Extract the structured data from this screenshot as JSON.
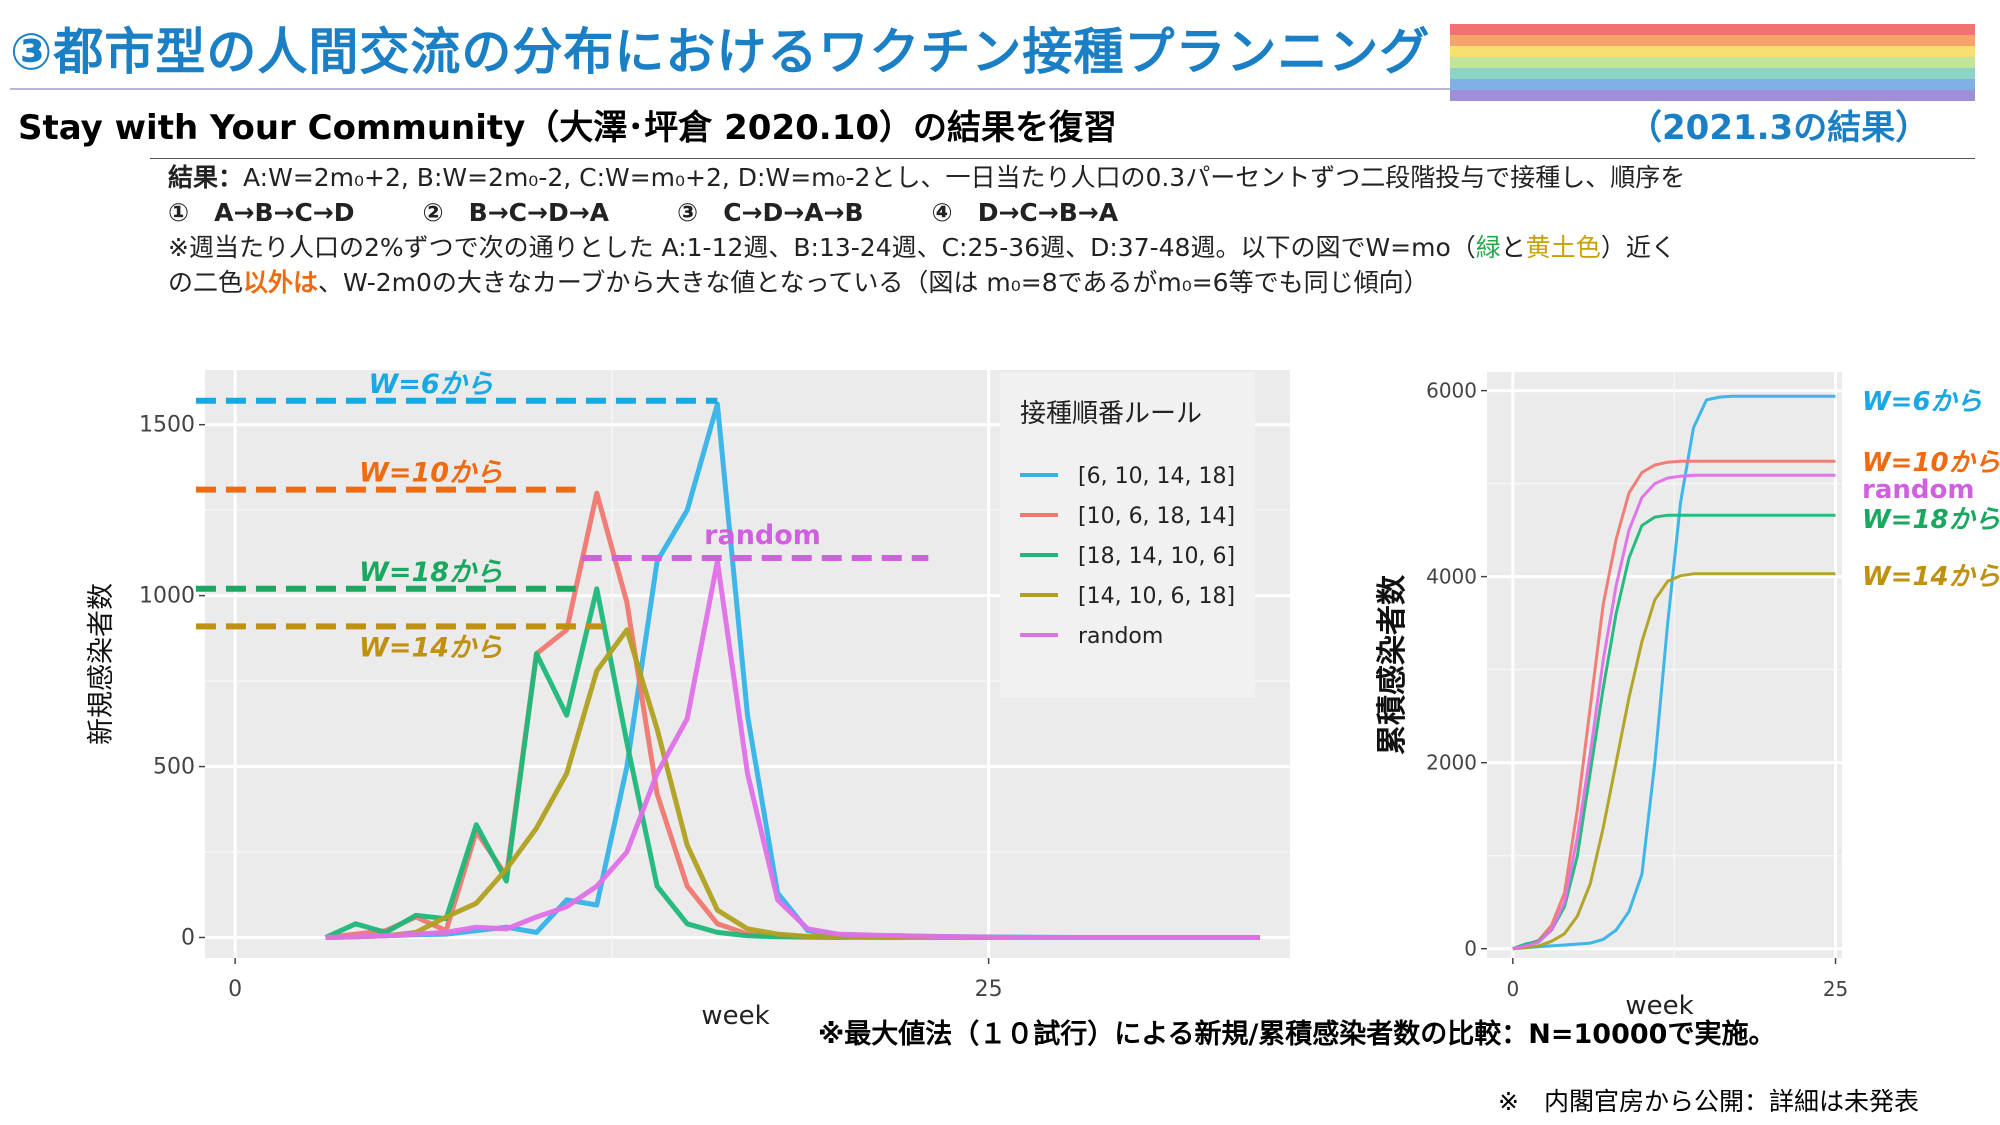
{
  "header": {
    "title": "③都市型の人間交流の分布におけるワクチン接種プランニング",
    "subtitle": "Stay with Your Community（大澤･坪倉 2020.10）の結果を復習",
    "date_label": "（2021.3の結果）",
    "rainbow_colors": [
      "#f07272",
      "#f6a46c",
      "#f8e070",
      "#c4e49a",
      "#8ed4c4",
      "#7fb1e6",
      "#a08ed6"
    ]
  },
  "body": {
    "result_label": "結果：",
    "line1": "A:W=2m₀+2, B:W=2m₀-2, C:W=m₀+2, D:W=m₀-2とし、一日当たり人口の0.3パーセントずつ二段階投与で接種し、順序を",
    "orders": [
      "①　A→B→C→D",
      "②　B→C→D→A",
      "③　C→D→A→B",
      "④　D→C→B→A"
    ],
    "line3": "※週当たり人口の2%ずつで次の通りとした A:1-12週、B:13-24週、C:25-36週、D:37-48週。以下の図でW=mo（",
    "line3_green": "緑",
    "line3_and": "と",
    "line3_ochre": "黄土色",
    "line3_end": "）近く",
    "line4_start": "の二色",
    "line4_emph": "以外は",
    "line4_end": "、W-2m0の大きなカーブから大きな値となっている（図は m₀=8であるがm₀=6等でも同じ傾向）"
  },
  "footer": {
    "comparison_note": "※最大値法（１０試行）による新規/累積感染者数の比較：N=10000で実施。",
    "source_note": "※　内閣官房から公開：詳細は未発表"
  },
  "chart_data": [
    {
      "type": "line",
      "ylabel": "新規感染者数",
      "xlabel": "week",
      "xlim": [
        -1,
        35
      ],
      "ylim": [
        -60,
        1660
      ],
      "x_ticks": [
        0,
        25
      ],
      "y_ticks": [
        0,
        500,
        1000,
        1500
      ],
      "grid": true,
      "legend": {
        "title": "接種順番ルール",
        "position": "right-inside"
      },
      "series": [
        {
          "name": "[6, 10, 14, 18]",
          "color": "#35b3e8",
          "x": [
            3,
            4,
            5,
            6,
            7,
            8,
            9,
            10,
            11,
            12,
            13,
            14,
            15,
            16,
            17,
            18,
            19,
            20,
            22,
            24,
            26,
            28,
            30,
            34
          ],
          "y": [
            0,
            2,
            5,
            8,
            10,
            20,
            30,
            15,
            110,
            95,
            500,
            1100,
            1250,
            1560,
            650,
            130,
            20,
            5,
            2,
            2,
            1,
            0,
            0,
            0
          ]
        },
        {
          "name": "[10, 6, 18, 14]",
          "color": "#f07870",
          "x": [
            3,
            4,
            5,
            6,
            7,
            8,
            9,
            10,
            11,
            12,
            13,
            14,
            15,
            16,
            17,
            18,
            19,
            20,
            22,
            24,
            26,
            28,
            30,
            34
          ],
          "y": [
            0,
            10,
            20,
            60,
            20,
            310,
            180,
            830,
            900,
            1300,
            980,
            420,
            150,
            40,
            10,
            5,
            2,
            1,
            0,
            0,
            0,
            0,
            0,
            0
          ]
        },
        {
          "name": "[18, 14, 10, 6]",
          "color": "#1db87a",
          "x": [
            3,
            4,
            5,
            6,
            7,
            8,
            9,
            10,
            11,
            12,
            13,
            14,
            15,
            16,
            17,
            18,
            19,
            20,
            22,
            24,
            26,
            28,
            30,
            34
          ],
          "y": [
            0,
            40,
            15,
            65,
            55,
            330,
            165,
            830,
            650,
            1020,
            570,
            150,
            40,
            15,
            5,
            2,
            1,
            0,
            5,
            0,
            0,
            0,
            0,
            0
          ]
        },
        {
          "name": "[14, 10, 6, 18]",
          "color": "#b0a020",
          "x": [
            3,
            4,
            5,
            6,
            7,
            8,
            9,
            10,
            11,
            12,
            13,
            14,
            15,
            16,
            17,
            18,
            19,
            20,
            22,
            24,
            26,
            28,
            30,
            34
          ],
          "y": [
            0,
            2,
            5,
            15,
            60,
            100,
            200,
            320,
            480,
            780,
            900,
            610,
            270,
            80,
            25,
            10,
            3,
            1,
            0,
            0,
            0,
            0,
            0,
            0
          ]
        },
        {
          "name": "random",
          "color": "#e070e8",
          "x": [
            3,
            4,
            5,
            6,
            7,
            8,
            9,
            10,
            11,
            12,
            13,
            14,
            15,
            16,
            17,
            18,
            19,
            20,
            22,
            24,
            26,
            28,
            30,
            34
          ],
          "y": [
            0,
            2,
            5,
            10,
            15,
            30,
            25,
            60,
            90,
            150,
            250,
            480,
            640,
            1100,
            480,
            110,
            25,
            10,
            5,
            2,
            0,
            0,
            0,
            0
          ]
        }
      ],
      "reference_lines": [
        {
          "label": "W=6から",
          "y": 1570,
          "x_from": -1.3,
          "x_to": 16,
          "color": "#1aa8e4"
        },
        {
          "label": "W=10から",
          "y": 1310,
          "x_from": -1.3,
          "x_to": 11.3,
          "color": "#f06a10"
        },
        {
          "label": "W=18から",
          "y": 1020,
          "x_from": -1.3,
          "x_to": 11.3,
          "color": "#1aa860"
        },
        {
          "label": "W=14から",
          "y": 910,
          "x_from": -1.3,
          "x_to": 12.2,
          "color": "#c09010"
        },
        {
          "label": "random",
          "y": 1110,
          "x_from": 11.5,
          "x_to": 23,
          "color": "#d060e0"
        }
      ]
    },
    {
      "type": "line",
      "ylabel": "累積感染者数",
      "xlabel": "week",
      "xlim": [
        -2,
        25.5
      ],
      "ylim": [
        -100,
        6200
      ],
      "x_ticks": [
        0,
        25
      ],
      "y_ticks": [
        0,
        2000,
        4000,
        6000
      ],
      "grid": true,
      "series": [
        {
          "name": "[6, 10, 14, 18]",
          "color": "#35b3e8",
          "x": [
            0,
            2,
            4,
            6,
            7,
            8,
            9,
            10,
            11,
            12,
            13,
            14,
            15,
            16,
            17,
            18,
            20,
            25
          ],
          "y": [
            0,
            20,
            40,
            60,
            100,
            200,
            400,
            800,
            2000,
            3500,
            4800,
            5600,
            5900,
            5930,
            5940,
            5940,
            5940,
            5940
          ]
        },
        {
          "name": "[10, 6, 18, 14]",
          "color": "#f07870",
          "x": [
            0,
            1,
            2,
            3,
            4,
            5,
            6,
            7,
            8,
            9,
            10,
            11,
            12,
            13,
            14,
            16,
            20,
            25
          ],
          "y": [
            0,
            40,
            90,
            250,
            600,
            1500,
            2600,
            3700,
            4400,
            4900,
            5120,
            5200,
            5230,
            5240,
            5240,
            5240,
            5240,
            5240
          ]
        },
        {
          "name": "[18, 14, 10, 6]",
          "color": "#1db87a",
          "x": [
            0,
            1,
            2,
            3,
            4,
            5,
            6,
            7,
            8,
            9,
            10,
            11,
            12,
            13,
            16,
            20,
            25
          ],
          "y": [
            0,
            50,
            80,
            200,
            450,
            1000,
            1900,
            2800,
            3600,
            4200,
            4550,
            4640,
            4660,
            4660,
            4660,
            4660,
            4660
          ]
        },
        {
          "name": "[14, 10, 6, 18]",
          "color": "#b0a020",
          "x": [
            0,
            1,
            2,
            3,
            4,
            5,
            6,
            7,
            8,
            9,
            10,
            11,
            12,
            13,
            14,
            16,
            20,
            25
          ],
          "y": [
            0,
            10,
            30,
            80,
            160,
            350,
            700,
            1300,
            2000,
            2700,
            3300,
            3750,
            3950,
            4010,
            4030,
            4030,
            4030,
            4030
          ]
        },
        {
          "name": "random",
          "color": "#e070e8",
          "x": [
            0,
            1,
            2,
            3,
            4,
            5,
            6,
            7,
            8,
            9,
            10,
            11,
            12,
            13,
            14,
            16,
            20,
            25
          ],
          "y": [
            0,
            30,
            70,
            200,
            500,
            1200,
            2100,
            3100,
            3900,
            4500,
            4850,
            5000,
            5060,
            5080,
            5090,
            5090,
            5090,
            5090
          ]
        }
      ],
      "end_labels": [
        {
          "label": "W=6から",
          "color": "#1aa8e4"
        },
        {
          "label": "W=10から",
          "color": "#f06a10"
        },
        {
          "label": "random",
          "color": "#d060e0"
        },
        {
          "label": "W=18から",
          "color": "#1aa860"
        },
        {
          "label": "W=14から",
          "color": "#c09010"
        }
      ]
    }
  ]
}
